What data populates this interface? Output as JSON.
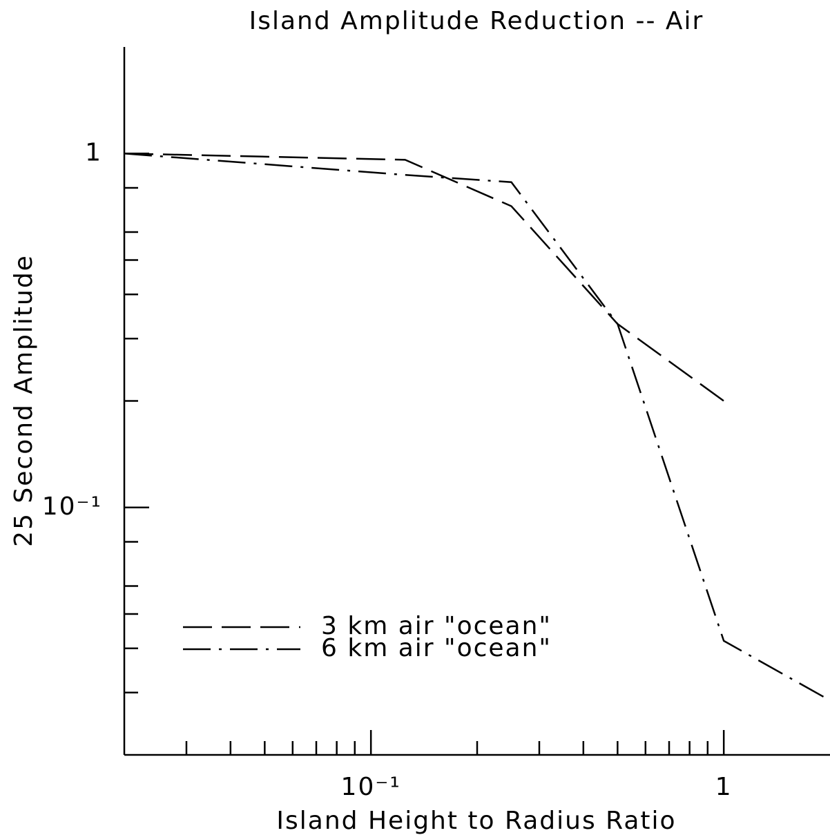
{
  "chart_data": {
    "type": "line",
    "title": "Island Amplitude Reduction -- Air",
    "x_label": "Island Height to Radius Ratio",
    "y_label": "25 Second Amplitude",
    "xscale": "log",
    "yscale": "log",
    "xlim": [
      0.02,
      2
    ],
    "ylim": [
      0.02,
      2
    ],
    "xticks": [
      {
        "value": 0.1,
        "label": "10⁻¹"
      },
      1
    ],
    "yticks": [
      1,
      {
        "value": 0.1,
        "label": "10⁻¹"
      }
    ],
    "xminorticks": [
      0.03,
      0.04,
      0.05,
      0.06,
      0.07,
      0.08,
      0.09,
      0.2,
      0.3,
      0.4,
      0.5,
      0.6,
      0.7,
      0.8,
      0.9
    ],
    "yminorticks": [
      0.8,
      0.6,
      0.5,
      0.4,
      0.3,
      0.2,
      0.08,
      0.06,
      0.05,
      0.04,
      0.03
    ],
    "legend": "lower left",
    "series": [
      {
        "name": "3 km air \"ocean\"",
        "color": "#000000",
        "dash": "dashed",
        "x": [
          0.02,
          0.125,
          0.25,
          0.5,
          1
        ],
        "values": [
          1,
          0.96,
          0.71,
          0.33,
          0.2
        ]
      },
      {
        "name": "6 km air \"ocean\"",
        "color": "#000000",
        "dash": "dashdot",
        "x": [
          0.02,
          0.125,
          0.25,
          0.5,
          1,
          2
        ],
        "values": [
          1,
          0.87,
          0.83,
          0.33,
          0.042,
          0.0285
        ]
      }
    ]
  }
}
